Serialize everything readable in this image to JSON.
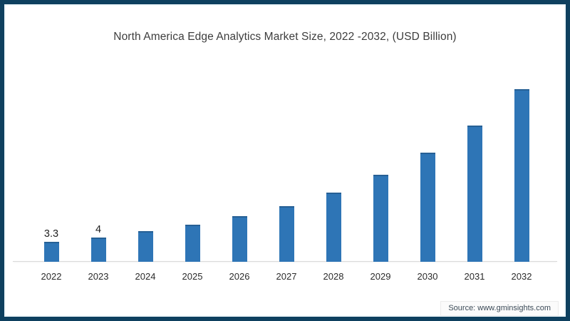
{
  "frame": {
    "border_color": "#0e405f",
    "background": "#ffffff"
  },
  "chart_data": {
    "type": "bar",
    "title": "North America Edge Analytics Market Size, 2022 -2032, (USD Billion)",
    "categories": [
      "2022",
      "2023",
      "2024",
      "2025",
      "2026",
      "2027",
      "2028",
      "2029",
      "2030",
      "2031",
      "2032"
    ],
    "values": [
      3.3,
      4,
      5,
      6,
      7.4,
      9.1,
      11.2,
      14.2,
      17.7,
      22.2,
      28.1
    ],
    "bar_labels": [
      "3.3",
      "4",
      "",
      "",
      "",
      "",
      "",
      "",
      "",
      "",
      ""
    ],
    "xlabel": "",
    "ylabel": "",
    "ylim": [
      0,
      30
    ],
    "grid": false,
    "legend": false,
    "bar_color": "#2e75b6",
    "bar_edge_color": "#266095",
    "axis_line_color": "#d9d9d9"
  },
  "source": {
    "text": "Source: www.gminsights.com"
  }
}
